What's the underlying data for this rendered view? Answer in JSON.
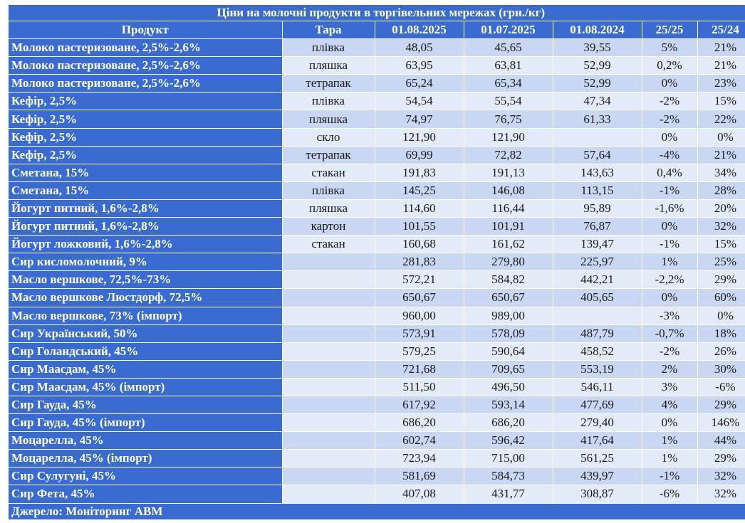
{
  "title": "Ціни на молочні продукти в торгівельних мережах (грн./кг)",
  "columns": [
    "Продукт",
    "Тара",
    "01.08.2025",
    "01.07.2025",
    "01.08.2024",
    "25/25",
    "25/24"
  ],
  "rows": [
    [
      "Молоко пастеризоване, 2,5%-2,6%",
      "плівка",
      "48,05",
      "45,65",
      "39,55",
      "5%",
      "21%"
    ],
    [
      "Молоко пастеризоване, 2,5%-2,6%",
      "пляшка",
      "63,95",
      "63,81",
      "52,99",
      "0,2%",
      "21%"
    ],
    [
      "Молоко пастеризоване, 2,5%-2,6%",
      "тетрапак",
      "65,24",
      "65,34",
      "52,99",
      "0%",
      "23%"
    ],
    [
      "Кефір, 2,5%",
      "плівка",
      "54,54",
      "55,54",
      "47,34",
      "-2%",
      "15%"
    ],
    [
      "Кефір, 2,5%",
      "пляшка",
      "74,97",
      "76,75",
      "61,33",
      "-2%",
      "22%"
    ],
    [
      "Кефір, 2,5%",
      "скло",
      "121,90",
      "121,90",
      "",
      "0%",
      "0%"
    ],
    [
      "Кефір, 2,5%",
      "тетрапак",
      "69,99",
      "72,82",
      "57,64",
      "-4%",
      "21%"
    ],
    [
      "Сметана, 15%",
      "стакан",
      "191,83",
      "191,13",
      "143,63",
      "0,4%",
      "34%"
    ],
    [
      "Сметана, 15%",
      "плівка",
      "145,25",
      "146,08",
      "113,15",
      "-1%",
      "28%"
    ],
    [
      "Йогурт питний, 1,6%-2,8%",
      "пляшка",
      "114,60",
      "116,44",
      "95,89",
      "-1,6%",
      "20%"
    ],
    [
      "Йогурт питний, 1,6%-2,8%",
      "картон",
      "101,55",
      "101,91",
      "76,87",
      "0%",
      "32%"
    ],
    [
      "Йогурт ложковий, 1,6%-2,8%",
      "стакан",
      "160,68",
      "161,62",
      "139,47",
      "-1%",
      "15%"
    ],
    [
      "Сир кисломолочний, 9%",
      "",
      "281,83",
      "279,80",
      "225,97",
      "1%",
      "25%"
    ],
    [
      "Масло вершкове, 72,5%-73%",
      "",
      "572,21",
      "584,82",
      "442,21",
      "-2,2%",
      "29%"
    ],
    [
      "Масло вершкове Люстдорф, 72,5%",
      "",
      "650,67",
      "650,67",
      "405,65",
      "0%",
      "60%"
    ],
    [
      "Масло вершкове, 73% (імпорт)",
      "",
      "960,00",
      "989,00",
      "",
      "-3%",
      "0%"
    ],
    [
      "Сир Український, 50%",
      "",
      "573,91",
      "578,09",
      "487,79",
      "-0,7%",
      "18%"
    ],
    [
      "Сир Голандський, 45%",
      "",
      "579,25",
      "590,64",
      "458,52",
      "-2%",
      "26%"
    ],
    [
      "Сир Маасдам, 45%",
      "",
      "721,68",
      "709,65",
      "553,19",
      "2%",
      "30%"
    ],
    [
      "Сир Маасдам, 45% (імпорт)",
      "",
      "511,50",
      "496,50",
      "546,11",
      "3%",
      "-6%"
    ],
    [
      "Сир Гауда, 45%",
      "",
      "617,92",
      "593,14",
      "477,69",
      "4%",
      "29%"
    ],
    [
      "Сир Гауда, 45% (імпорт)",
      "",
      "686,20",
      "686,20",
      "279,40",
      "0%",
      "146%"
    ],
    [
      "Моцарелла, 45%",
      "",
      "602,74",
      "596,42",
      "417,64",
      "1%",
      "44%"
    ],
    [
      "Моцарелла, 45% (імпорт)",
      "",
      "723,94",
      "715,00",
      "561,25",
      "1%",
      "29%"
    ],
    [
      "Сир Сулугуні, 45%",
      "",
      "581,69",
      "584,73",
      "439,97",
      "-1%",
      "32%"
    ],
    [
      "Сир Фета, 45%",
      "",
      "407,08",
      "431,77",
      "308,87",
      "-6%",
      "32%"
    ]
  ],
  "source": "Джерело: Моніторинг АВМ",
  "colors": {
    "header": "#3a6bd0",
    "row_odd": "#c9d7f2",
    "row_even": "#e4ebf8"
  }
}
